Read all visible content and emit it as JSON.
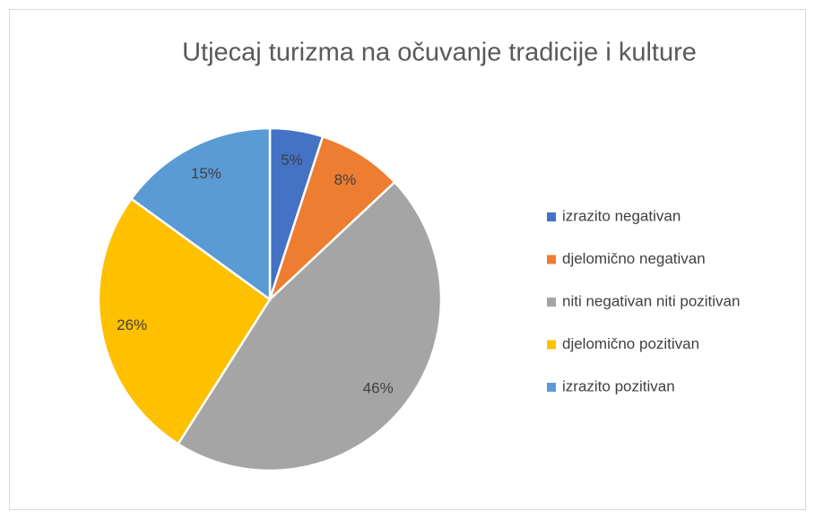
{
  "chart_data": {
    "type": "pie",
    "title": "Utjecaj turizma na očuvanje tradicije i kulture",
    "categories": [
      "izrazito negativan",
      "djelomično negativan",
      "niti negativan niti pozitivan",
      "djelomično pozitivan",
      "izrazito pozitivan"
    ],
    "values": [
      5,
      8,
      46,
      26,
      15
    ],
    "value_labels": [
      "5%",
      "8%",
      "46%",
      "26%",
      "15%"
    ],
    "colors": [
      "#4472c4",
      "#ed7d31",
      "#a5a5a5",
      "#ffc000",
      "#5b9bd5"
    ],
    "legend": "right"
  }
}
